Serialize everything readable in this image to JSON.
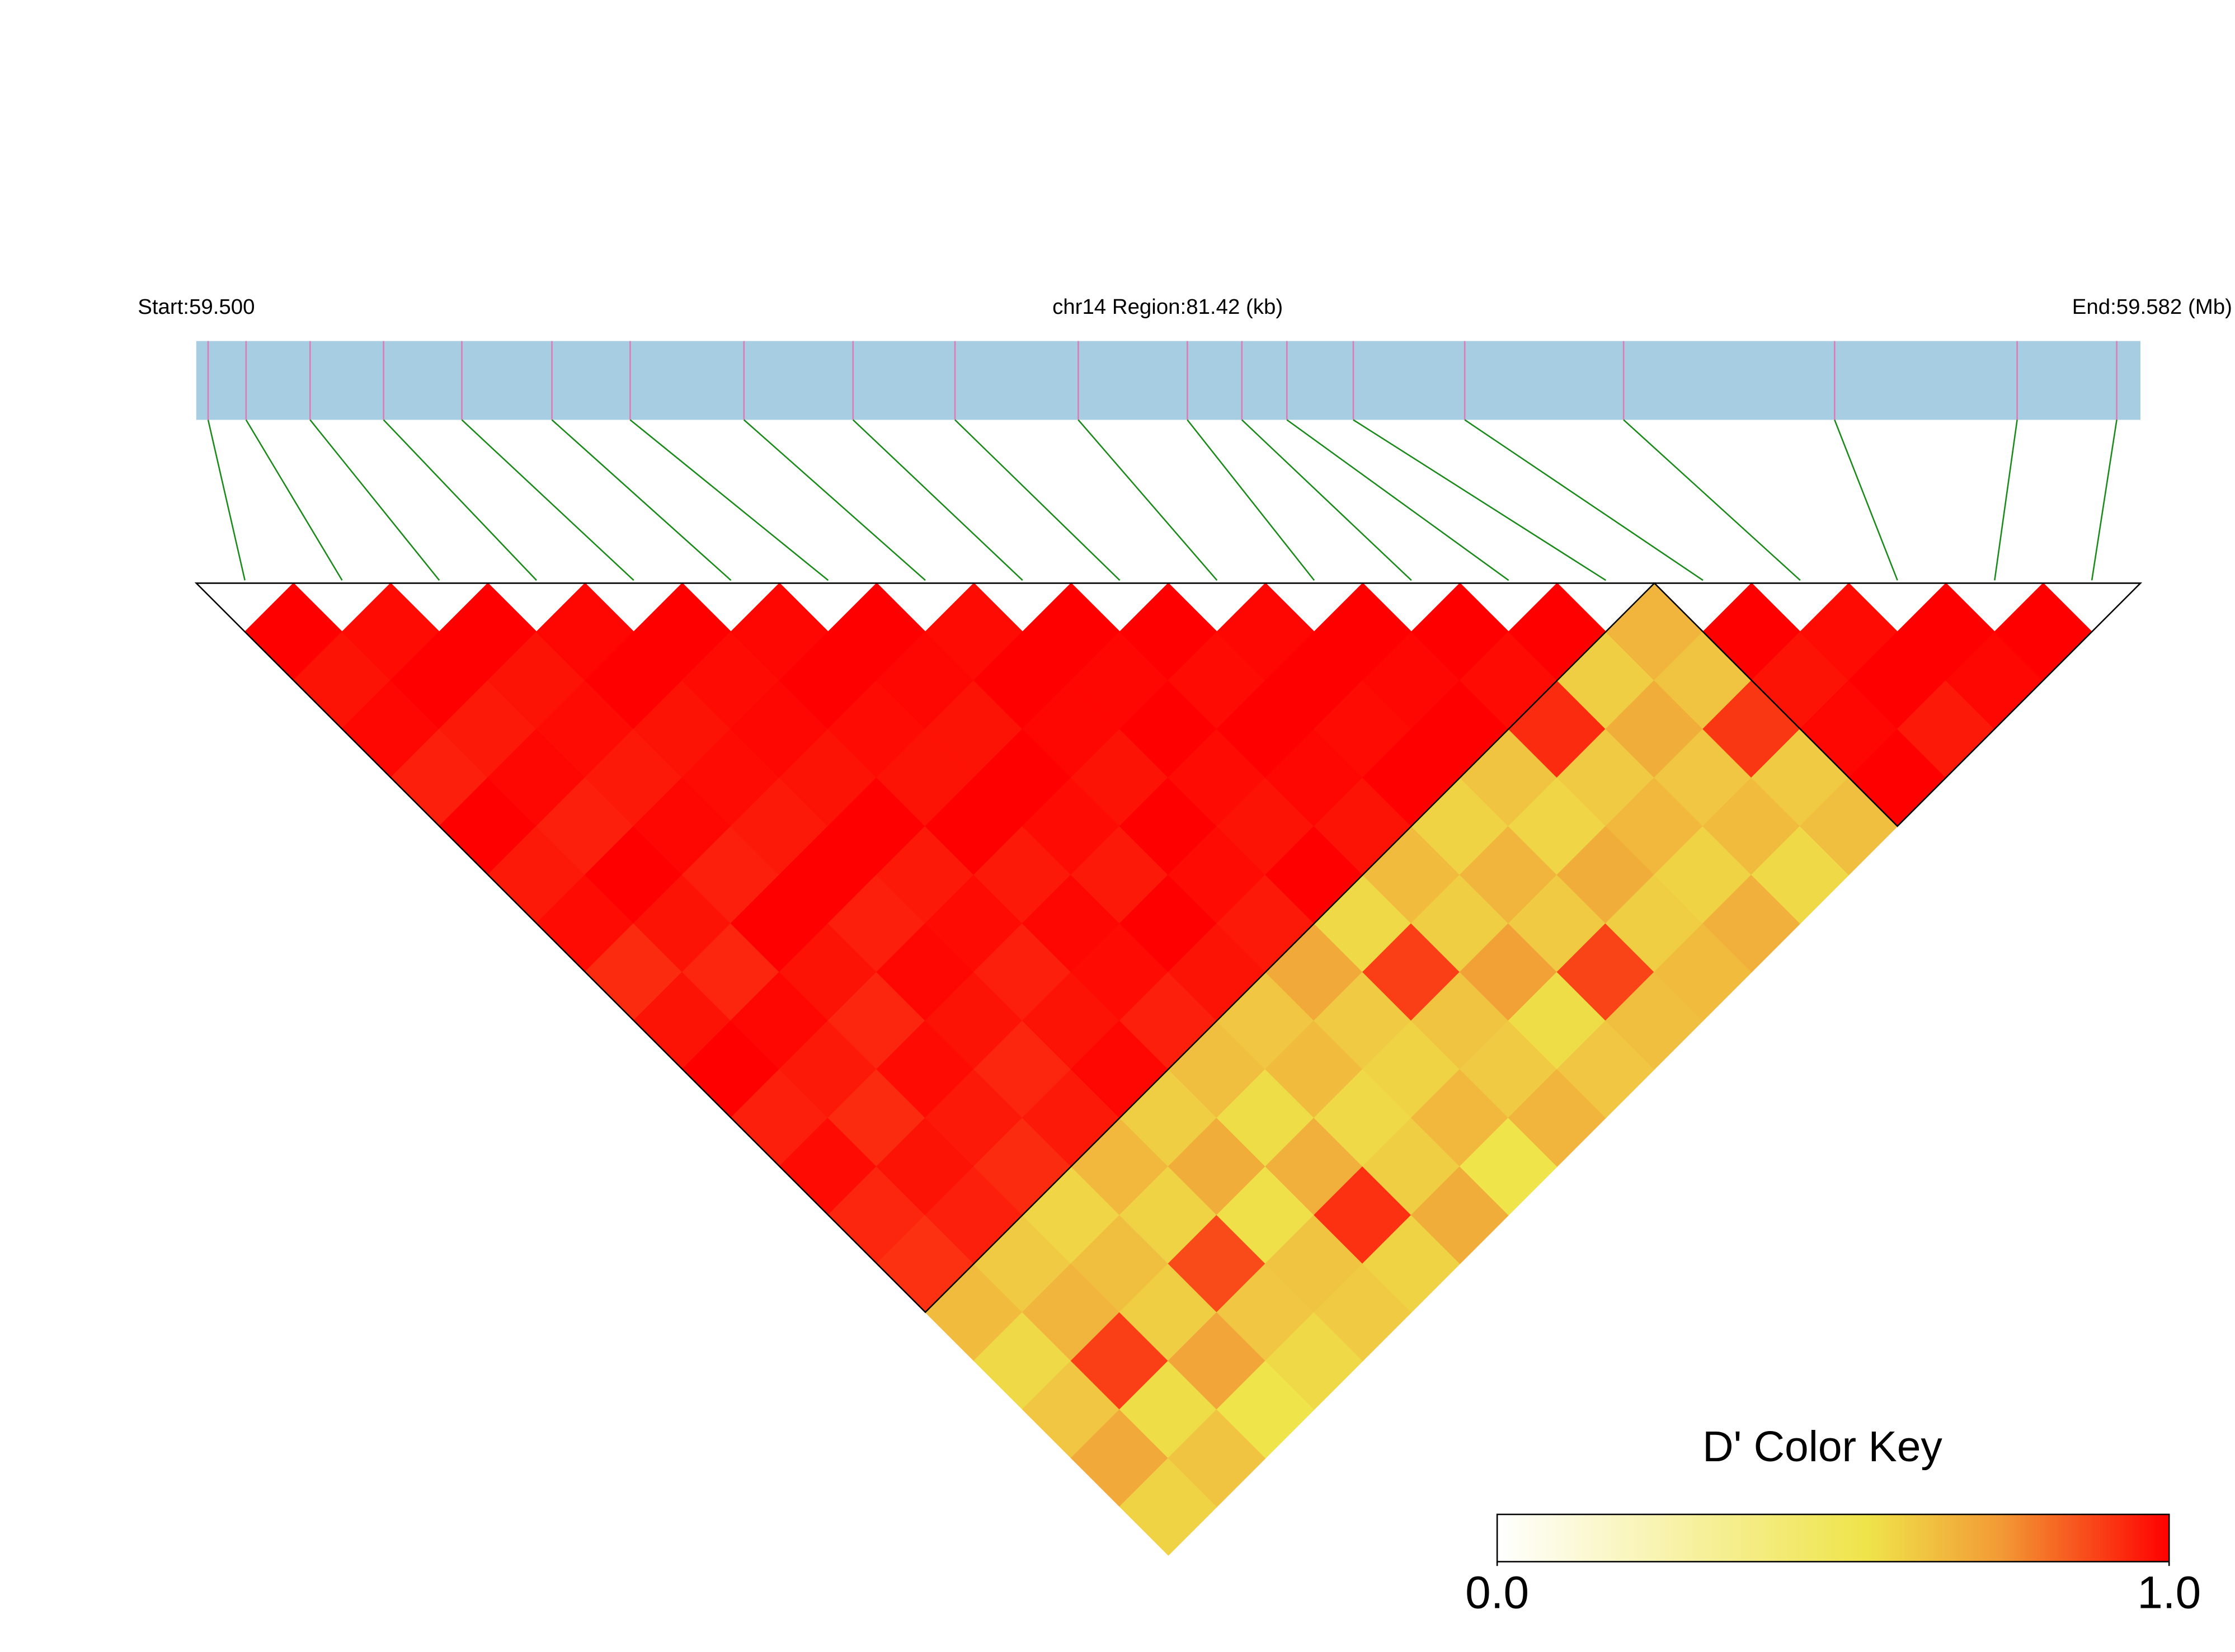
{
  "chart_data": {
    "type": "ld-heatmap",
    "start_label": "Start:59.500",
    "region_label": "chr14 Region:81.42 (kb)",
    "end_label": "End:59.582 (Mb)",
    "xlim": [
      59.5,
      59.582
    ],
    "snp_positions": [
      59.5005,
      59.5021,
      59.5048,
      59.5079,
      59.5112,
      59.515,
      59.5183,
      59.5231,
      59.5277,
      59.532,
      59.5372,
      59.5418,
      59.5441,
      59.546,
      59.5488,
      59.5535,
      59.5602,
      59.5691,
      59.5768,
      59.581
    ],
    "dprime": [
      [
        1.0,
        0.97,
        0.99,
        0.95,
        1.0,
        0.96,
        0.98,
        0.93,
        0.97,
        1.0,
        0.95,
        0.98,
        0.94,
        0.92,
        0.66,
        0.58,
        0.63,
        0.71,
        0.6
      ],
      [
        0.98,
        1.0,
        0.96,
        0.99,
        0.95,
        1.0,
        0.97,
        0.94,
        0.99,
        0.96,
        0.93,
        0.97,
        0.95,
        0.62,
        0.68,
        0.9,
        0.57,
        0.64
      ],
      [
        1.0,
        0.97,
        0.98,
        0.96,
        0.99,
        0.95,
        1.0,
        0.97,
        0.94,
        0.98,
        0.96,
        0.93,
        0.59,
        0.65,
        0.61,
        0.72,
        0.55
      ],
      [
        0.99,
        1.0,
        0.97,
        0.98,
        0.96,
        1.0,
        0.95,
        0.99,
        0.97,
        0.94,
        0.96,
        0.67,
        0.6,
        0.88,
        0.63,
        0.58
      ],
      [
        1.0,
        0.98,
        0.99,
        0.97,
        1.0,
        0.96,
        0.98,
        0.95,
        0.97,
        0.99,
        0.61,
        0.7,
        0.56,
        0.64,
        0.62
      ],
      [
        0.99,
        1.0,
        0.98,
        0.97,
        1.0,
        0.96,
        0.99,
        0.98,
        0.95,
        0.65,
        0.57,
        0.69,
        0.92,
        0.6
      ],
      [
        1.0,
        0.99,
        0.97,
        1.0,
        0.98,
        0.96,
        1.0,
        0.97,
        0.63,
        0.66,
        0.58,
        0.61,
        0.7
      ],
      [
        0.98,
        1.0,
        0.99,
        0.97,
        1.0,
        0.98,
        0.96,
        0.71,
        0.62,
        0.6,
        0.67,
        0.55
      ],
      [
        1.0,
        0.99,
        1.0,
        0.98,
        0.97,
        1.0,
        0.58,
        0.9,
        0.64,
        0.62,
        0.68
      ],
      [
        1.0,
        0.98,
        1.0,
        0.99,
        0.97,
        0.66,
        0.61,
        0.73,
        0.57,
        0.63
      ],
      [
        0.99,
        1.0,
        0.98,
        1.0,
        0.6,
        0.68,
        0.62,
        0.89,
        0.65
      ],
      [
        1.0,
        0.99,
        1.0,
        0.64,
        0.59,
        0.7,
        0.61,
        0.66
      ],
      [
        1.0,
        0.98,
        0.93,
        0.62,
        0.67,
        0.6,
        0.69
      ],
      [
        1.0,
        0.61,
        0.7,
        0.63,
        0.66,
        0.58
      ],
      [
        0.68,
        0.64,
        0.91,
        0.62,
        0.65
      ],
      [
        1.0,
        0.97,
        0.99,
        1.0
      ],
      [
        0.98,
        1.0,
        0.96
      ],
      [
        1.0,
        0.99
      ],
      [
        1.0
      ]
    ],
    "blocks": [
      [
        0,
        14
      ],
      [
        15,
        19
      ]
    ],
    "colormap": {
      "colors": [
        "#ffffff",
        "#efe44a",
        "#f29a35",
        "#ff0000"
      ],
      "stops": [
        0,
        0.55,
        0.75,
        1
      ]
    },
    "color_key": {
      "title": "D' Color Key",
      "clim": [
        0,
        1
      ],
      "ticks": [
        {
          "value": 0,
          "label": "0.0"
        },
        {
          "value": 1,
          "label": "1.0"
        }
      ]
    },
    "bar_color": "#a6cde2",
    "snp_color": "#e07ab4",
    "link_color": "#1a8a1a"
  }
}
